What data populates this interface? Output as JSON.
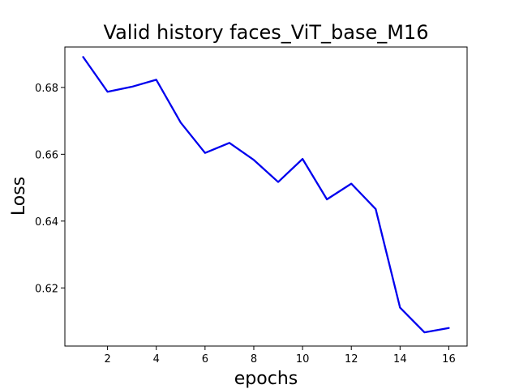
{
  "chart_data": {
    "type": "line",
    "title": "Valid history faces_ViT_base_M16",
    "xlabel": "epochs",
    "ylabel": "Loss",
    "xlim": [
      0.25,
      16.75
    ],
    "ylim": [
      0.6026,
      0.6921
    ],
    "x_ticks": [
      2,
      4,
      6,
      8,
      10,
      12,
      14,
      16
    ],
    "x_tick_labels": [
      "2",
      "4",
      "6",
      "8",
      "10",
      "12",
      "14",
      "16"
    ],
    "y_ticks": [
      0.62,
      0.64,
      0.66,
      0.68
    ],
    "y_tick_labels": [
      "0.62",
      "0.64",
      "0.66",
      "0.68"
    ],
    "grid": false,
    "series": [
      {
        "color": "#0000ee",
        "x": [
          1,
          2,
          3,
          4,
          5,
          6,
          7,
          8,
          9,
          10,
          11,
          12,
          13,
          14,
          15,
          16
        ],
        "values": [
          0.6891,
          0.6787,
          0.6802,
          0.6823,
          0.6695,
          0.6604,
          0.6634,
          0.6583,
          0.6517,
          0.6586,
          0.6465,
          0.6512,
          0.6436,
          0.6141,
          0.6067,
          0.608
        ]
      }
    ]
  }
}
